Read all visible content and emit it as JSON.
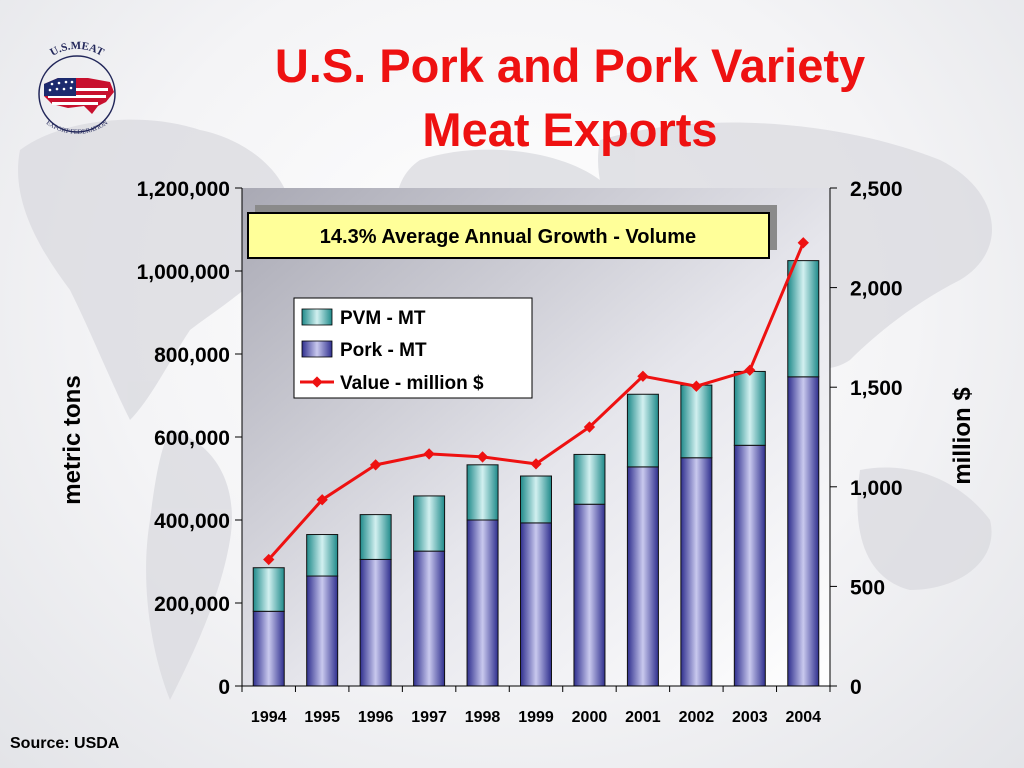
{
  "title_line1": "U.S. Pork and Pork Variety",
  "title_line2": "Meat Exports",
  "logo_text_top": "U.S.MEAT",
  "logo_text_bottom": "EXPORT FEDERATION",
  "source": "Source:  USDA",
  "annotation": "14.3% Average Annual Growth - Volume",
  "colors": {
    "title": "#ee1111",
    "pork": "#4a4aa8",
    "pvm": "#2f9a9a",
    "value_line": "#ee1111"
  },
  "chart_data": {
    "type": "bar",
    "stacked": true,
    "categories": [
      "1994",
      "1995",
      "1996",
      "1997",
      "1998",
      "1999",
      "2000",
      "2001",
      "2002",
      "2003",
      "2004"
    ],
    "series": [
      {
        "name": "Pork - MT",
        "axis": "left",
        "values": [
          180000,
          265000,
          305000,
          325000,
          400000,
          393000,
          438000,
          528000,
          550000,
          580000,
          745000
        ]
      },
      {
        "name": "PVM - MT",
        "axis": "left",
        "values": [
          105000,
          100000,
          108000,
          133000,
          133000,
          113000,
          120000,
          175000,
          175000,
          178000,
          280000
        ]
      },
      {
        "name": "Value - million $",
        "axis": "right",
        "type": "line",
        "values": [
          635,
          935,
          1110,
          1165,
          1150,
          1115,
          1300,
          1555,
          1505,
          1585,
          2225
        ]
      }
    ],
    "ylabel": "metric tons",
    "y2label": "million $",
    "ylim": [
      0,
      1200000
    ],
    "y2lim": [
      0,
      2500
    ],
    "yticks": [
      "0",
      "200,000",
      "400,000",
      "600,000",
      "800,000",
      "1,000,000",
      "1,200,000"
    ],
    "y2ticks": [
      "0",
      "500",
      "1,000",
      "1,500",
      "2,000",
      "2,500"
    ],
    "legend": [
      "PVM - MT",
      "Pork - MT",
      "Value - million $"
    ],
    "legend_position": "top-left inside plot",
    "grid": false
  }
}
